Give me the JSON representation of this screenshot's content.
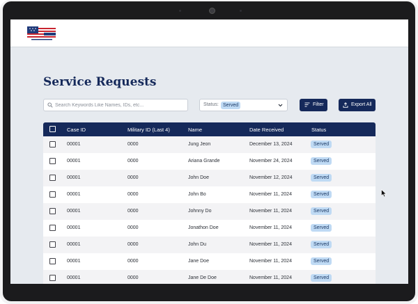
{
  "page": {
    "title": "Service Requests"
  },
  "search": {
    "placeholder": "Search Keywords Like Names, IDs, etc..."
  },
  "status_filter": {
    "label": "Status:",
    "selected": "Served"
  },
  "toolbar": {
    "filter_label": "Filter",
    "export_label": "Export All"
  },
  "table": {
    "headers": {
      "case_id": "Case ID",
      "military_id": "Military ID (Last 4)",
      "name": "Name",
      "date_received": "Date Received",
      "status": "Status"
    },
    "rows": [
      {
        "case_id": "00001",
        "military_id": "0000",
        "name": "Jung Jeon",
        "date_received": "December 13, 2024",
        "status": "Served"
      },
      {
        "case_id": "00001",
        "military_id": "0000",
        "name": "Ariana Grande",
        "date_received": "November 24, 2024",
        "status": "Served"
      },
      {
        "case_id": "00001",
        "military_id": "0000",
        "name": "John Doe",
        "date_received": "November 12, 2024",
        "status": "Served"
      },
      {
        "case_id": "00001",
        "military_id": "0000",
        "name": "John Bo",
        "date_received": "November 11, 2024",
        "status": "Served"
      },
      {
        "case_id": "00001",
        "military_id": "0000",
        "name": "Johnny Do",
        "date_received": "November 11, 2024",
        "status": "Served"
      },
      {
        "case_id": "00001",
        "military_id": "0000",
        "name": "Jonathon Doe",
        "date_received": "November 11, 2024",
        "status": "Served"
      },
      {
        "case_id": "00001",
        "military_id": "0000",
        "name": "John Du",
        "date_received": "November 11, 2024",
        "status": "Served"
      },
      {
        "case_id": "00001",
        "military_id": "0000",
        "name": "Jane Doe",
        "date_received": "November 11, 2024",
        "status": "Served"
      },
      {
        "case_id": "00001",
        "military_id": "0000",
        "name": "Jane De Doe",
        "date_received": "November 11, 2024",
        "status": "Served"
      }
    ]
  },
  "icons": {
    "logo": "flag-logo-icon",
    "search": "search-icon",
    "dropdown": "chevron-down-icon",
    "filter": "filter-lines-icon",
    "export": "upload-icon",
    "cursor": "mouse-pointer-icon"
  },
  "colors": {
    "primary": "#15295a",
    "badge_bg": "#bfdaf4",
    "page_bg": "#e6eaef"
  }
}
